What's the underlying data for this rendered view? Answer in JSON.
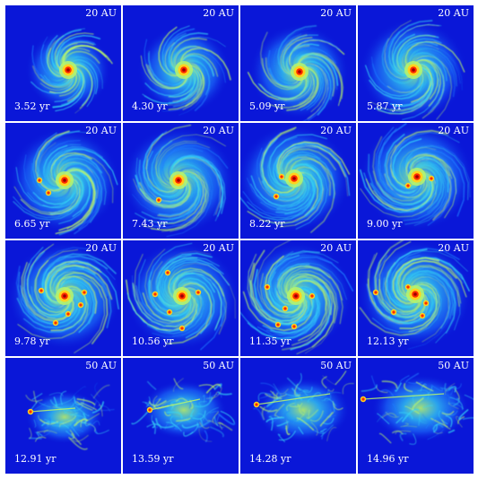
{
  "figure": {
    "colormap": [
      "#0a17d8",
      "#1e7cff",
      "#35d3f4",
      "#b8f56a",
      "#ffd21e",
      "#ff2a00",
      "#9a0000"
    ],
    "panels": [
      {
        "time": "3.52 yr",
        "scale": "20 AU",
        "stage": "disc"
      },
      {
        "time": "4.30 yr",
        "scale": "20 AU",
        "stage": "disc"
      },
      {
        "time": "5.09 yr",
        "scale": "20 AU",
        "stage": "disc"
      },
      {
        "time": "5.87 yr",
        "scale": "20 AU",
        "stage": "disc"
      },
      {
        "time": "6.65 yr",
        "scale": "20 AU",
        "stage": "fragment"
      },
      {
        "time": "7.43 yr",
        "scale": "20 AU",
        "stage": "fragment"
      },
      {
        "time": "8.22 yr",
        "scale": "20 AU",
        "stage": "fragment"
      },
      {
        "time": "9.00 yr",
        "scale": "20 AU",
        "stage": "fragment"
      },
      {
        "time": "9.78 yr",
        "scale": "20 AU",
        "stage": "multi"
      },
      {
        "time": "10.56 yr",
        "scale": "20 AU",
        "stage": "multi"
      },
      {
        "time": "11.35 yr",
        "scale": "20 AU",
        "stage": "multi"
      },
      {
        "time": "12.13 yr",
        "scale": "20 AU",
        "stage": "multi"
      },
      {
        "time": "12.91 yr",
        "scale": "50 AU",
        "stage": "dispersed"
      },
      {
        "time": "13.59 yr",
        "scale": "50 AU",
        "stage": "dispersed"
      },
      {
        "time": "14.28 yr",
        "scale": "50 AU",
        "stage": "dispersed"
      },
      {
        "time": "14.96 yr",
        "scale": "50 AU",
        "stage": "dispersed"
      }
    ]
  }
}
